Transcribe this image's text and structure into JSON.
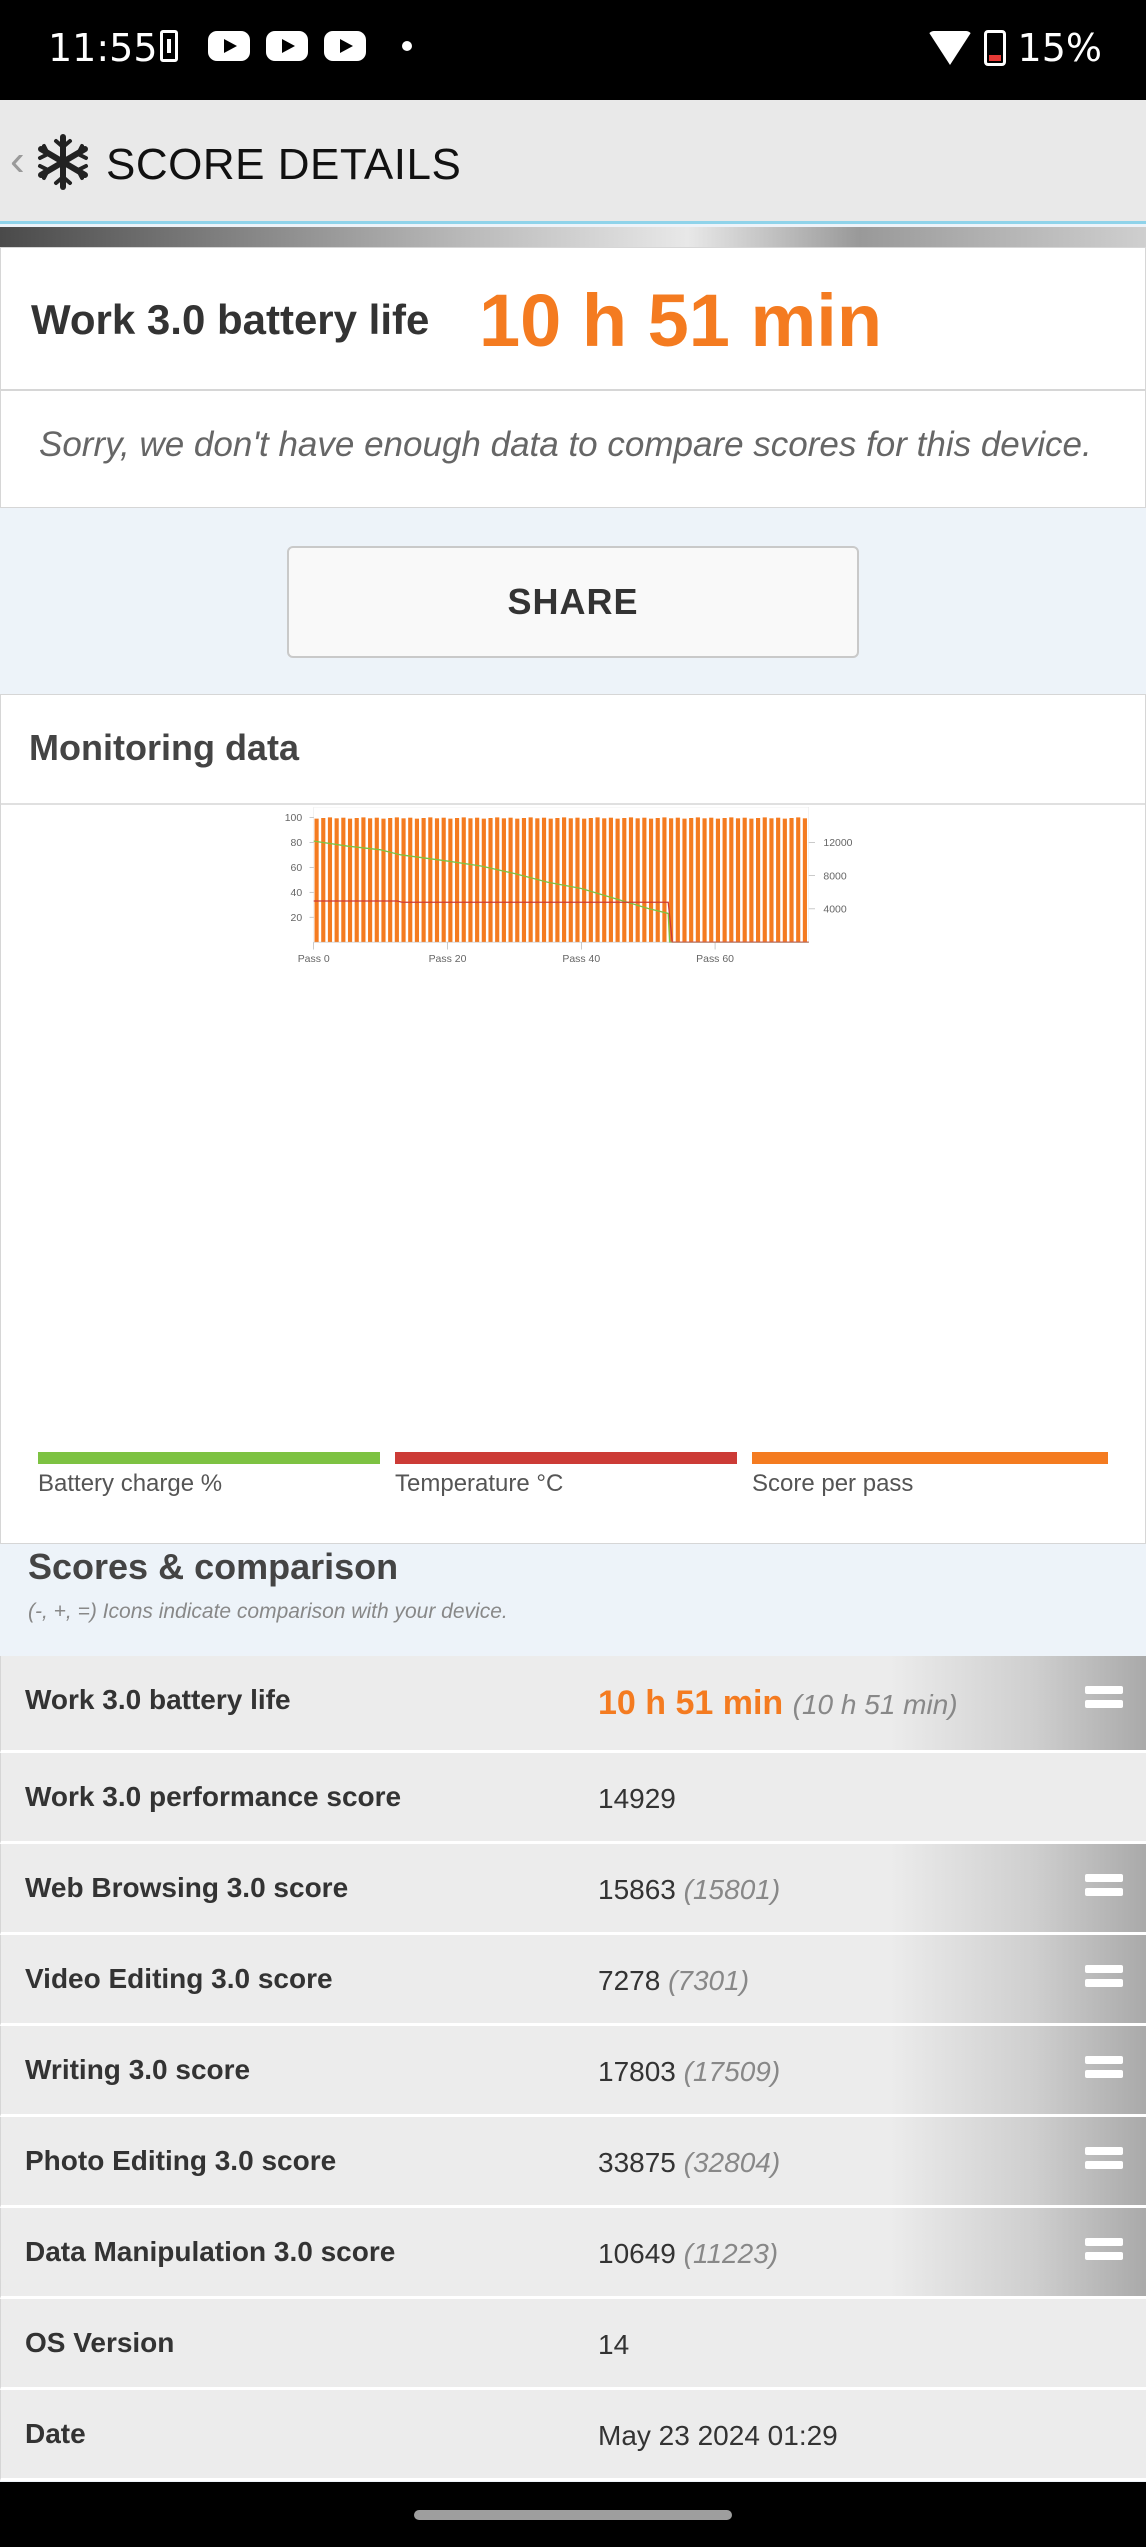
{
  "status": {
    "time": "11:55",
    "battery": "15%",
    "icons": [
      "battery-saver-icon",
      "youtube-icon",
      "youtube-icon",
      "youtube-icon",
      "dot-icon",
      "wifi-icon",
      "battery-icon"
    ]
  },
  "appbar": {
    "back": "‹",
    "title": "SCORE DETAILS"
  },
  "score": {
    "label": "Work 3.0 battery life",
    "value": "10 h 51 min"
  },
  "compare_msg": "Sorry, we don't have enough data to compare scores for this device.",
  "share_label": "SHARE",
  "monitor": {
    "title": "Monitoring data",
    "legend": [
      {
        "label": "Battery charge %",
        "color": "#7dc242"
      },
      {
        "label": "Temperature °C",
        "color": "#cc3b36"
      },
      {
        "label": "Score per pass",
        "color": "#f47b20"
      }
    ]
  },
  "chart_data": {
    "type": "bar",
    "x_ticks": [
      "Pass 0",
      "Pass 20",
      "Pass 40",
      "Pass 60"
    ],
    "left_axis": {
      "ticks": [
        20,
        40,
        60,
        80,
        100
      ],
      "ylim": [
        0,
        110
      ]
    },
    "right_axis": {
      "ticks": [
        4000,
        8000,
        12000
      ],
      "ylim": [
        0,
        16500
      ]
    },
    "n_passes": 74,
    "series": [
      {
        "name": "Score per pass",
        "color": "#f47b20",
        "axis": "left",
        "value": 99.5
      },
      {
        "name": "Battery charge %",
        "color": "#7dc242",
        "axis": "left",
        "points": [
          [
            0,
            81
          ],
          [
            5,
            77
          ],
          [
            10,
            74
          ],
          [
            13,
            70
          ],
          [
            20,
            65
          ],
          [
            25,
            61
          ],
          [
            30,
            55
          ],
          [
            35,
            48
          ],
          [
            40,
            43
          ],
          [
            45,
            35
          ],
          [
            50,
            27
          ],
          [
            53,
            23
          ],
          [
            53.2,
            0
          ],
          [
            74,
            0
          ]
        ]
      },
      {
        "name": "Temperature °C",
        "color": "#cc3b36",
        "axis": "left",
        "points": [
          [
            0,
            33
          ],
          [
            12.5,
            33
          ],
          [
            13.2,
            32
          ],
          [
            53,
            32
          ],
          [
            53.6,
            0
          ],
          [
            74,
            0
          ]
        ]
      }
    ]
  },
  "scores": {
    "title": "Scores & comparison",
    "subtitle": "(-, +, =) Icons indicate comparison with your device.",
    "rows": [
      {
        "name": "Work 3.0 battery life",
        "value": "10 h 51 min",
        "compare": "(10 h 51 min)"
      },
      {
        "name": "Work 3.0 performance score",
        "value": "14929",
        "compare": ""
      },
      {
        "name": "Web Browsing 3.0 score",
        "value": "15863",
        "compare": "(15801)"
      },
      {
        "name": "Video Editing 3.0 score",
        "value": "7278",
        "compare": "(7301)"
      },
      {
        "name": "Writing 3.0 score",
        "value": "17803",
        "compare": "(17509)"
      },
      {
        "name": "Photo Editing 3.0 score",
        "value": "33875",
        "compare": "(32804)"
      },
      {
        "name": "Data Manipulation 3.0 score",
        "value": "10649",
        "compare": "(11223)"
      },
      {
        "name": "OS Version",
        "value": "14",
        "compare": ""
      },
      {
        "name": "Date",
        "value": "May 23 2024 01:29",
        "compare": ""
      }
    ]
  }
}
